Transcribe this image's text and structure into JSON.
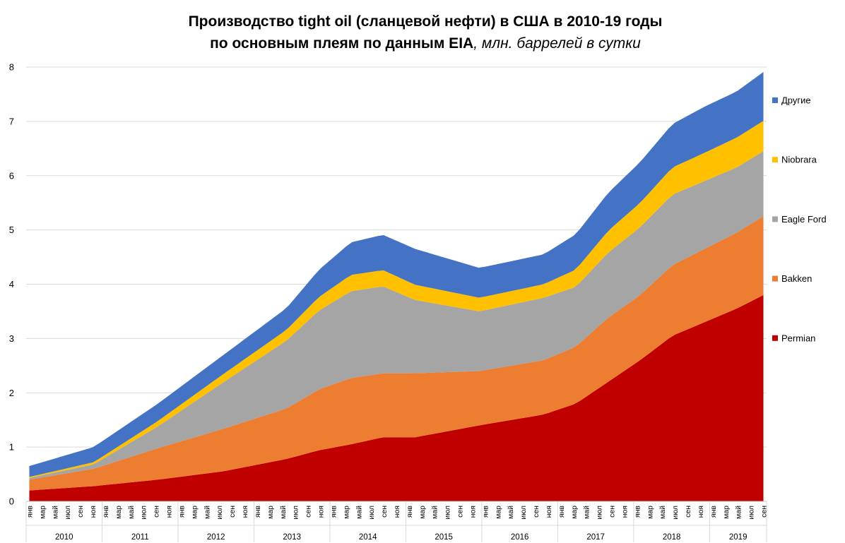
{
  "title": {
    "line1": "Производство tight oil (сланцевой нефти) в США в 2010-19 годы",
    "line2_bold": "по основным плеям по данным EIA",
    "line2_italic": ", млн. баррелей в сутки"
  },
  "chart_data": {
    "type": "area",
    "stacked": true,
    "ylim": [
      0,
      8
    ],
    "yticks": [
      0,
      1,
      2,
      3,
      4,
      5,
      6,
      7,
      8
    ],
    "grid": true,
    "legend_position": "right",
    "month_labels": [
      "янв",
      "мар",
      "май",
      "июл",
      "сен",
      "ноя"
    ],
    "years": [
      "2010",
      "2011",
      "2012",
      "2013",
      "2014",
      "2015",
      "2016",
      "2017",
      "2018",
      "2019"
    ],
    "x_range": "2010-01 to 2019-09 (monthly)",
    "series": [
      {
        "name": "Permian",
        "color": "#C00000",
        "knots": [
          [
            0,
            0.2
          ],
          [
            12,
            0.28
          ],
          [
            24,
            0.4
          ],
          [
            36,
            0.55
          ],
          [
            48,
            0.78
          ],
          [
            54,
            0.94
          ],
          [
            60,
            1.05
          ],
          [
            66,
            1.18
          ],
          [
            72,
            1.18
          ],
          [
            84,
            1.4
          ],
          [
            96,
            1.6
          ],
          [
            102,
            1.8
          ],
          [
            108,
            2.2
          ],
          [
            114,
            2.6
          ],
          [
            120,
            3.05
          ],
          [
            126,
            3.3
          ],
          [
            132,
            3.55
          ],
          [
            137,
            3.8
          ]
        ]
      },
      {
        "name": "Bakken",
        "color": "#ED7D31",
        "knots": [
          [
            0,
            0.2
          ],
          [
            12,
            0.32
          ],
          [
            24,
            0.58
          ],
          [
            36,
            0.78
          ],
          [
            48,
            0.93
          ],
          [
            54,
            1.12
          ],
          [
            60,
            1.22
          ],
          [
            66,
            1.18
          ],
          [
            72,
            1.18
          ],
          [
            84,
            1.0
          ],
          [
            96,
            1.0
          ],
          [
            102,
            1.05
          ],
          [
            108,
            1.18
          ],
          [
            114,
            1.2
          ],
          [
            120,
            1.3
          ],
          [
            126,
            1.35
          ],
          [
            132,
            1.4
          ],
          [
            137,
            1.45
          ]
        ]
      },
      {
        "name": "Eagle Ford",
        "color": "#A5A5A5",
        "knots": [
          [
            0,
            0.03
          ],
          [
            12,
            0.08
          ],
          [
            24,
            0.4
          ],
          [
            36,
            0.85
          ],
          [
            48,
            1.25
          ],
          [
            54,
            1.45
          ],
          [
            60,
            1.6
          ],
          [
            66,
            1.6
          ],
          [
            72,
            1.35
          ],
          [
            84,
            1.1
          ],
          [
            96,
            1.15
          ],
          [
            102,
            1.1
          ],
          [
            108,
            1.2
          ],
          [
            114,
            1.25
          ],
          [
            120,
            1.3
          ],
          [
            126,
            1.25
          ],
          [
            132,
            1.2
          ],
          [
            137,
            1.2
          ]
        ]
      },
      {
        "name": "Niobrara",
        "color": "#FFC000",
        "knots": [
          [
            0,
            0.02
          ],
          [
            12,
            0.04
          ],
          [
            24,
            0.1
          ],
          [
            36,
            0.15
          ],
          [
            48,
            0.2
          ],
          [
            54,
            0.25
          ],
          [
            60,
            0.3
          ],
          [
            66,
            0.3
          ],
          [
            72,
            0.28
          ],
          [
            84,
            0.25
          ],
          [
            96,
            0.25
          ],
          [
            102,
            0.32
          ],
          [
            108,
            0.4
          ],
          [
            114,
            0.45
          ],
          [
            120,
            0.5
          ],
          [
            126,
            0.52
          ],
          [
            132,
            0.55
          ],
          [
            137,
            0.56
          ]
        ]
      },
      {
        "name": "Другие",
        "color": "#4472C4",
        "knots": [
          [
            0,
            0.2
          ],
          [
            12,
            0.28
          ],
          [
            24,
            0.32
          ],
          [
            36,
            0.35
          ],
          [
            48,
            0.4
          ],
          [
            54,
            0.5
          ],
          [
            60,
            0.6
          ],
          [
            66,
            0.65
          ],
          [
            72,
            0.66
          ],
          [
            84,
            0.55
          ],
          [
            96,
            0.55
          ],
          [
            102,
            0.65
          ],
          [
            108,
            0.7
          ],
          [
            114,
            0.75
          ],
          [
            120,
            0.8
          ],
          [
            126,
            0.85
          ],
          [
            132,
            0.85
          ],
          [
            137,
            0.9
          ]
        ]
      }
    ]
  }
}
